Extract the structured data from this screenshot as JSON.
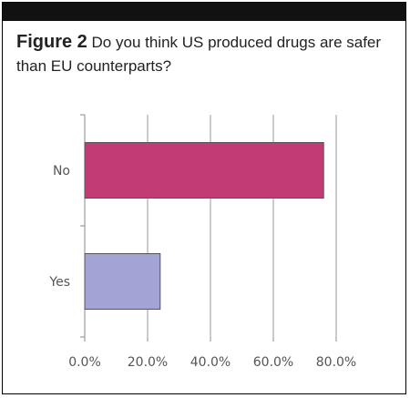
{
  "figure": {
    "label": "Figure 2",
    "question": "Do you think US produced drugs are safer than EU counterparts?"
  },
  "chart_data": {
    "type": "bar",
    "orientation": "horizontal",
    "categories": [
      "No",
      "Yes"
    ],
    "values": [
      76,
      24
    ],
    "xlim": [
      0,
      80
    ],
    "xticks": [
      "0.0%",
      "20.0%",
      "40.0%",
      "60.0%",
      "80.0%"
    ],
    "grid": true,
    "colors": {
      "No": "#c23b74",
      "Yes": "#a3a3d6"
    }
  }
}
